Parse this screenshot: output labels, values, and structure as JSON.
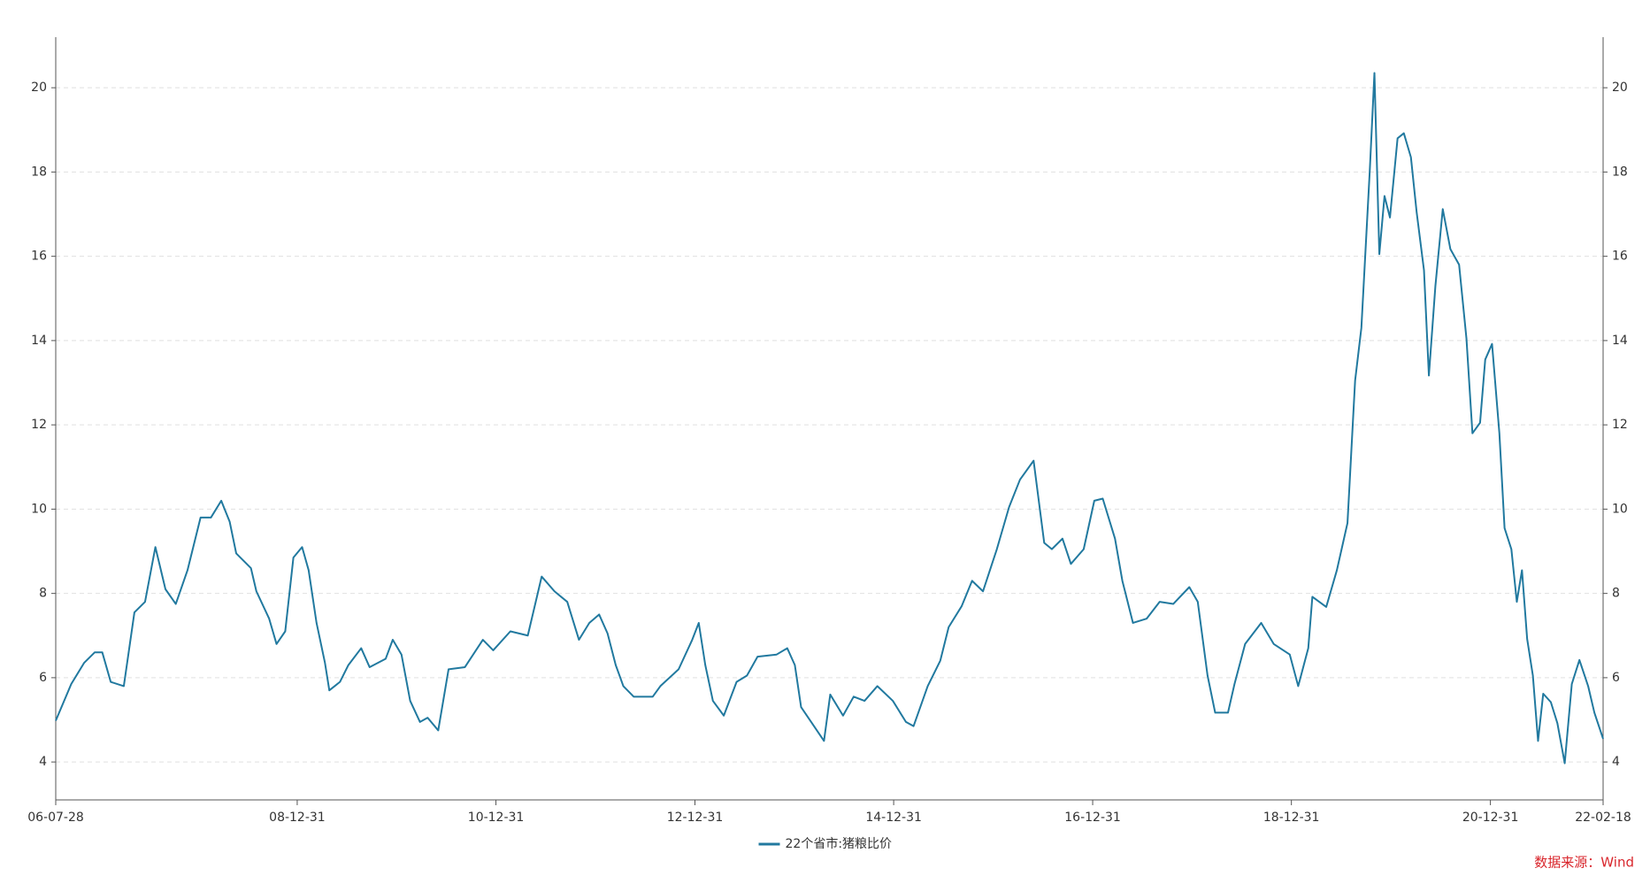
{
  "chart_data": {
    "type": "line",
    "x": [
      "06-07-28",
      "06-09-23",
      "06-11-09",
      "06-12-18",
      "07-01-15",
      "07-02-15",
      "07-04-04",
      "07-05-13",
      "07-06-21",
      "07-07-29",
      "07-09-04",
      "07-10-12",
      "07-11-24",
      "08-01-11",
      "08-02-18",
      "08-03-27",
      "08-04-27",
      "08-05-21",
      "08-07-14",
      "08-08-03",
      "08-09-19",
      "08-10-16",
      "08-11-17",
      "08-12-17",
      "09-01-18",
      "09-02-11",
      "09-03-12",
      "09-04-12",
      "09-04-28",
      "09-06-06",
      "09-07-07",
      "09-08-23",
      "09-09-23",
      "09-11-21",
      "09-12-17",
      "10-01-18",
      "10-02-19",
      "10-03-27",
      "10-04-24",
      "10-06-02",
      "10-07-10",
      "10-09-08",
      "10-11-13",
      "10-12-21",
      "11-02-22",
      "11-04-27",
      "11-06-17",
      "11-08-03",
      "11-09-19",
      "11-11-01",
      "11-12-09",
      "12-01-14",
      "12-02-14",
      "12-03-15",
      "12-04-12",
      "12-05-20",
      "12-07-29",
      "12-08-26",
      "12-11-01",
      "12-12-21",
      "13-01-14",
      "13-02-07",
      "13-03-07",
      "13-04-16",
      "13-06-02",
      "13-07-10",
      "13-08-18",
      "13-10-27",
      "13-12-05",
      "14-01-02",
      "14-01-25",
      "14-03-03",
      "14-04-19",
      "14-05-12",
      "14-06-28",
      "14-08-06",
      "14-09-15",
      "14-11-01",
      "14-12-28",
      "15-02-14",
      "15-03-14",
      "15-05-05",
      "15-06-20",
      "15-07-21",
      "15-09-07",
      "15-10-15",
      "15-11-24",
      "16-01-14",
      "16-02-28",
      "16-04-08",
      "16-05-28",
      "16-07-06",
      "16-08-03",
      "16-09-11",
      "16-10-12",
      "16-11-28",
      "17-01-06",
      "17-02-06",
      "17-03-23",
      "17-04-19",
      "17-05-28",
      "17-07-17",
      "17-09-03",
      "17-10-23",
      "17-12-21",
      "18-01-21",
      "18-02-26",
      "18-03-26",
      "18-05-12",
      "18-06-05",
      "18-07-14",
      "18-09-11",
      "18-10-27",
      "18-12-25",
      "19-01-25",
      "19-03-03",
      "19-03-18",
      "19-05-08",
      "19-06-16",
      "19-07-25",
      "19-08-22",
      "19-09-14",
      "19-10-15",
      "19-11-01",
      "19-11-19",
      "19-12-08",
      "19-12-28",
      "20-01-25",
      "20-02-17",
      "20-03-14",
      "20-04-04",
      "20-05-01",
      "20-05-19",
      "20-06-12",
      "20-07-09",
      "20-08-06",
      "20-09-07",
      "20-10-04",
      "20-10-26",
      "20-11-23",
      "20-12-12",
      "21-01-06",
      "21-02-02",
      "21-02-21",
      "21-03-18",
      "21-04-07",
      "21-04-26",
      "21-05-15",
      "21-06-05",
      "21-06-24",
      "21-07-13",
      "21-08-10",
      "21-09-03",
      "21-09-30",
      "21-10-26",
      "21-11-23",
      "21-12-25",
      "22-01-17",
      "22-02-18"
    ],
    "series": [
      {
        "name": "22个省市:猪粮比价",
        "color": "#21799f",
        "values": [
          4.98,
          5.85,
          6.35,
          6.6,
          6.6,
          5.9,
          5.8,
          7.55,
          7.8,
          9.1,
          8.1,
          7.75,
          8.55,
          9.8,
          9.8,
          10.2,
          9.7,
          8.95,
          8.6,
          8.05,
          7.4,
          6.8,
          7.1,
          8.85,
          9.1,
          8.55,
          7.3,
          6.35,
          5.7,
          5.9,
          6.3,
          6.7,
          6.25,
          6.45,
          6.9,
          6.55,
          5.45,
          4.95,
          5.05,
          4.75,
          6.2,
          6.25,
          6.9,
          6.65,
          7.1,
          7.0,
          8.4,
          8.05,
          7.8,
          6.9,
          7.3,
          7.5,
          7.05,
          6.3,
          5.8,
          5.55,
          5.55,
          5.8,
          6.2,
          6.9,
          7.3,
          6.3,
          5.45,
          5.1,
          5.9,
          6.05,
          6.5,
          6.55,
          6.7,
          6.3,
          5.3,
          4.95,
          4.5,
          5.6,
          5.1,
          5.55,
          5.45,
          5.8,
          5.45,
          4.95,
          4.85,
          5.8,
          6.4,
          7.2,
          7.7,
          8.3,
          8.05,
          9.05,
          10.05,
          10.7,
          11.15,
          9.2,
          9.05,
          9.3,
          8.7,
          9.05,
          10.2,
          10.25,
          9.3,
          8.3,
          7.3,
          7.4,
          7.8,
          7.75,
          8.15,
          7.8,
          6.05,
          5.17,
          5.17,
          5.85,
          6.8,
          7.3,
          6.8,
          6.55,
          5.8,
          6.7,
          7.92,
          7.68,
          8.55,
          9.67,
          13.05,
          14.3,
          18.05,
          20.35,
          16.05,
          17.43,
          16.92,
          18.8,
          18.92,
          18.35,
          17.05,
          15.67,
          13.17,
          15.3,
          17.12,
          16.17,
          15.8,
          14.05,
          11.8,
          12.05,
          13.55,
          13.92,
          11.8,
          9.55,
          9.05,
          7.8,
          8.55,
          6.92,
          6.05,
          4.5,
          5.62,
          5.42,
          4.92,
          3.97,
          5.85,
          6.42,
          5.8,
          5.17,
          4.55
        ]
      }
    ],
    "xlim": [
      "06-07-28",
      "22-02-18"
    ],
    "xticks": [
      "06-07-28",
      "08-12-31",
      "10-12-31",
      "12-12-31",
      "14-12-31",
      "16-12-31",
      "18-12-31",
      "20-12-31",
      "22-02-18"
    ],
    "ylim": [
      3.1,
      21.2
    ],
    "yticks": [
      4,
      6,
      8,
      10,
      12,
      14,
      16,
      18,
      20
    ],
    "grid": true
  },
  "source": "数据来源：Wind"
}
